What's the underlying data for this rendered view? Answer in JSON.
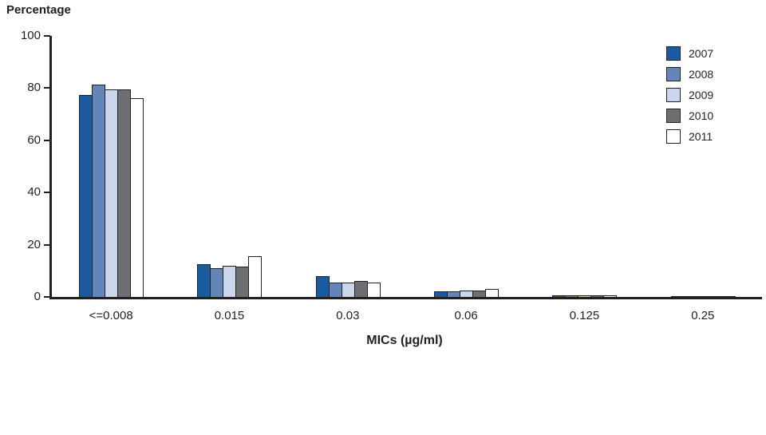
{
  "chart_data": {
    "type": "bar",
    "title": "",
    "ylabel": "Percentage",
    "xlabel": "MICs (µg/ml)",
    "ylim": [
      0,
      100
    ],
    "yticks": [
      0,
      20,
      40,
      60,
      80,
      100
    ],
    "grid": false,
    "legend_position": "top-right",
    "categories": [
      "<=0.008",
      "0.015",
      "0.03",
      "0.06",
      "0.125",
      "0.25"
    ],
    "series": [
      {
        "name": "2007",
        "color": "#1a5a9e",
        "values": [
          77.5,
          12.5,
          8,
          2,
          0.5,
          0.3
        ]
      },
      {
        "name": "2008",
        "color": "#6286b8",
        "values": [
          81.5,
          11,
          5.5,
          2,
          0.5,
          0.3
        ]
      },
      {
        "name": "2009",
        "color": "#c9d6eb",
        "values": [
          79.5,
          12,
          5.5,
          2.5,
          0.5,
          0.3
        ]
      },
      {
        "name": "2010",
        "color": "#6d6e71",
        "values": [
          79.5,
          11.5,
          6,
          2.5,
          0.5,
          0.3
        ]
      },
      {
        "name": "2011",
        "color": "#ffffff",
        "values": [
          76,
          15.5,
          5.5,
          3,
          0.5,
          0.3
        ]
      }
    ],
    "axis_color": "#231f20"
  }
}
